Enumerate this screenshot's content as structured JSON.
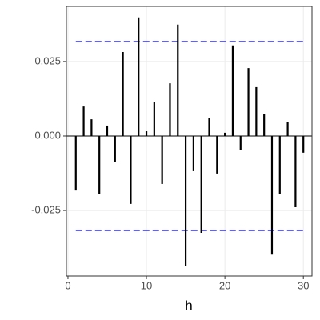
{
  "chart_data": {
    "type": "acf",
    "x_label": "h",
    "x": [
      1,
      2,
      3,
      4,
      5,
      6,
      7,
      8,
      9,
      10,
      11,
      12,
      13,
      14,
      15,
      16,
      17,
      18,
      19,
      20,
      21,
      22,
      23,
      24,
      25,
      26,
      27,
      28,
      29,
      30
    ],
    "values": [
      -0.0183,
      0.0099,
      0.0056,
      -0.0196,
      0.0035,
      -0.0086,
      0.0282,
      -0.0228,
      0.0398,
      0.0016,
      0.0113,
      -0.0161,
      0.0177,
      0.0374,
      -0.0435,
      -0.0118,
      -0.0325,
      0.0059,
      -0.0126,
      0.0011,
      0.0304,
      -0.0048,
      0.0228,
      0.0164,
      0.0075,
      -0.0398,
      -0.0196,
      0.0048,
      -0.0239,
      -0.0056
    ],
    "color": "#000000",
    "reference_lines": [
      {
        "value": 0,
        "color": "#000000",
        "dashed": false
      },
      {
        "value": 0.0317,
        "color": "#0000ff",
        "dashed": true
      },
      {
        "value": -0.0317,
        "color": "#0000ff",
        "dashed": true
      }
    ],
    "xlim": [
      -0.2,
      31.1
    ],
    "ylim": [
      -0.047,
      0.0435
    ],
    "xticks": [
      0,
      10,
      20,
      30
    ],
    "yticks": [
      {
        "value": -0.025,
        "label": "-0.025"
      },
      {
        "value": 0,
        "label": "0.000"
      },
      {
        "value": 0.025,
        "label": "0.025"
      }
    ],
    "grid": true
  }
}
